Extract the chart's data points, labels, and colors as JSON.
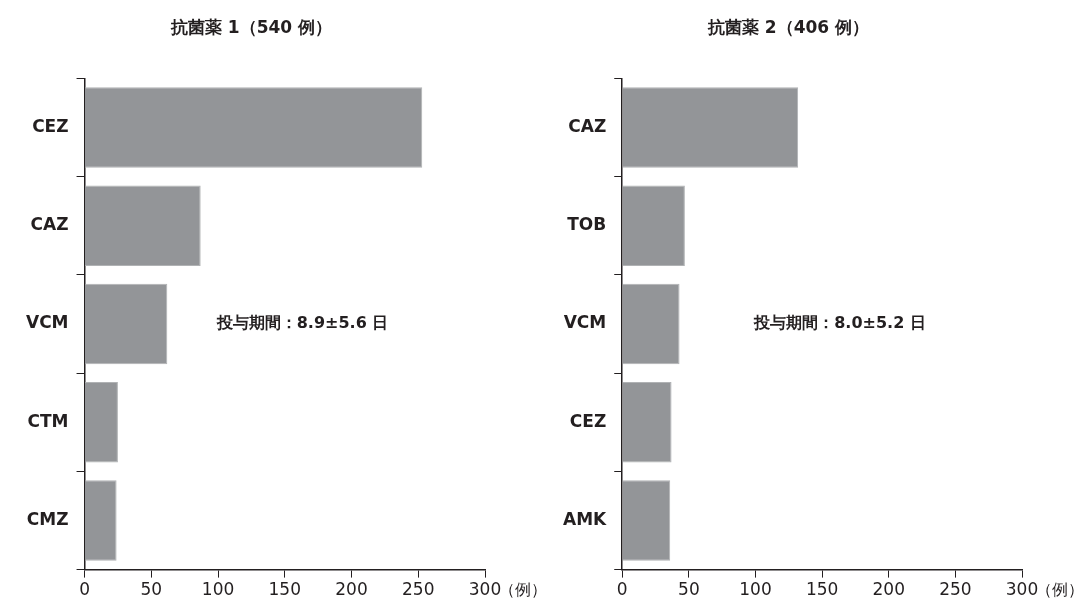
{
  "chart_data": [
    {
      "type": "bar",
      "orientation": "horizontal",
      "title": "抗菌薬 1（540 例）",
      "xlabel": "（例）",
      "categories": [
        "CEZ",
        "CAZ",
        "VCM",
        "CTM",
        "CMZ"
      ],
      "values": [
        253,
        87,
        62,
        25,
        24
      ],
      "color": "#939598",
      "xlim": [
        0,
        300
      ],
      "xticks": [
        0,
        50,
        100,
        150,
        200,
        250,
        300
      ],
      "grid": false,
      "annotations": [
        "投与期間：8.9±5.6 日"
      ]
    },
    {
      "type": "bar",
      "orientation": "horizontal",
      "title": "抗菌薬 2（406 例）",
      "xlabel": "（例）",
      "categories": [
        "CAZ",
        "TOB",
        "VCM",
        "CEZ",
        "AMK"
      ],
      "values": [
        132,
        47,
        43,
        37,
        36
      ],
      "color": "#939598",
      "xlim": [
        0,
        300
      ],
      "xticks": [
        0,
        50,
        100,
        150,
        200,
        250,
        300
      ],
      "grid": false,
      "annotations": [
        "投与期間：8.0±5.2 日"
      ]
    }
  ]
}
